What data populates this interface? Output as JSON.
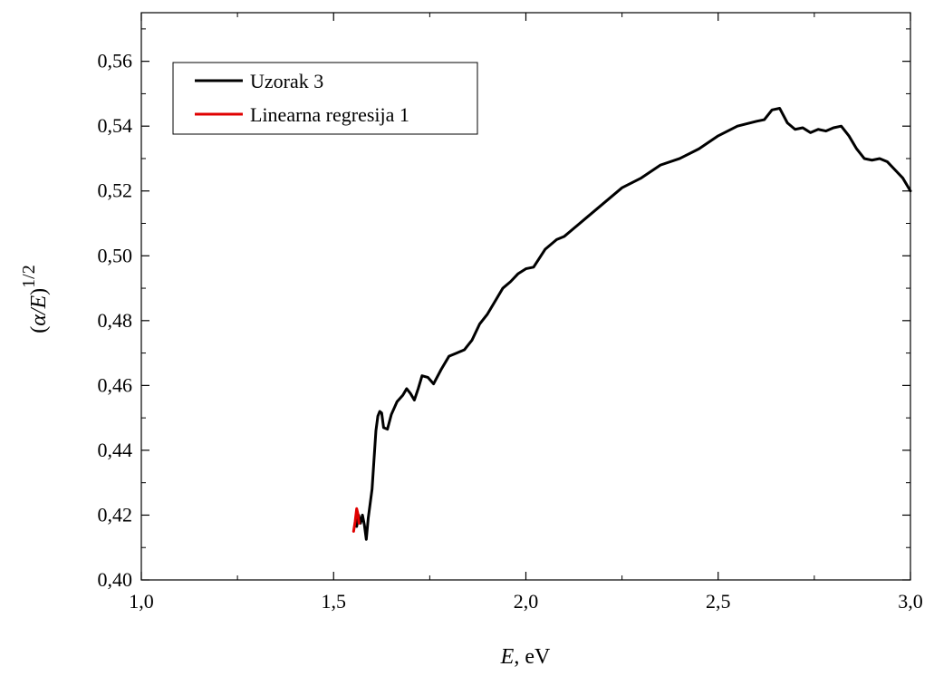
{
  "chart_data": {
    "type": "line",
    "title": "",
    "xlabel": {
      "italic": "E",
      "rest": ", eV"
    },
    "ylabel": {
      "open": "(",
      "italic": "α/E",
      "close": ")",
      "sup": "1/2"
    },
    "xlim": [
      1.0,
      3.0
    ],
    "ylim": [
      0.4,
      0.575
    ],
    "xticks": [
      1.0,
      1.5,
      2.0,
      2.5,
      3.0
    ],
    "xtick_labels": [
      "1,0",
      "1,5",
      "2,0",
      "2,5",
      "3,0"
    ],
    "yticks": [
      0.4,
      0.42,
      0.44,
      0.46,
      0.48,
      0.5,
      0.52,
      0.54,
      0.56
    ],
    "ytick_labels": [
      "0,40",
      "0,42",
      "0,44",
      "0,46",
      "0,48",
      "0,50",
      "0,52",
      "0,54",
      "0,56"
    ],
    "grid": false,
    "legend_position": "top-left",
    "series": [
      {
        "name": "Uzorak 3",
        "color": "#000000",
        "points": [
          [
            1.56,
            0.4165
          ],
          [
            1.565,
            0.42
          ],
          [
            1.57,
            0.4175
          ],
          [
            1.575,
            0.42
          ],
          [
            1.58,
            0.417
          ],
          [
            1.585,
            0.4125
          ],
          [
            1.59,
            0.419
          ],
          [
            1.6,
            0.428
          ],
          [
            1.605,
            0.437
          ],
          [
            1.61,
            0.446
          ],
          [
            1.615,
            0.4505
          ],
          [
            1.62,
            0.452
          ],
          [
            1.625,
            0.4515
          ],
          [
            1.63,
            0.447
          ],
          [
            1.64,
            0.4465
          ],
          [
            1.65,
            0.451
          ],
          [
            1.665,
            0.455
          ],
          [
            1.68,
            0.457
          ],
          [
            1.69,
            0.459
          ],
          [
            1.7,
            0.4575
          ],
          [
            1.71,
            0.4555
          ],
          [
            1.72,
            0.459
          ],
          [
            1.73,
            0.463
          ],
          [
            1.745,
            0.4625
          ],
          [
            1.76,
            0.4605
          ],
          [
            1.78,
            0.465
          ],
          [
            1.8,
            0.469
          ],
          [
            1.82,
            0.47
          ],
          [
            1.84,
            0.471
          ],
          [
            1.86,
            0.474
          ],
          [
            1.88,
            0.479
          ],
          [
            1.9,
            0.482
          ],
          [
            1.92,
            0.486
          ],
          [
            1.94,
            0.49
          ],
          [
            1.96,
            0.492
          ],
          [
            1.98,
            0.4945
          ],
          [
            2.0,
            0.496
          ],
          [
            2.02,
            0.4965
          ],
          [
            2.05,
            0.502
          ],
          [
            2.08,
            0.505
          ],
          [
            2.1,
            0.506
          ],
          [
            2.15,
            0.511
          ],
          [
            2.2,
            0.516
          ],
          [
            2.25,
            0.521
          ],
          [
            2.3,
            0.524
          ],
          [
            2.35,
            0.528
          ],
          [
            2.4,
            0.53
          ],
          [
            2.45,
            0.533
          ],
          [
            2.5,
            0.537
          ],
          [
            2.55,
            0.54
          ],
          [
            2.6,
            0.5415
          ],
          [
            2.62,
            0.542
          ],
          [
            2.64,
            0.545
          ],
          [
            2.66,
            0.5455
          ],
          [
            2.68,
            0.541
          ],
          [
            2.7,
            0.539
          ],
          [
            2.72,
            0.5395
          ],
          [
            2.74,
            0.538
          ],
          [
            2.76,
            0.539
          ],
          [
            2.78,
            0.5385
          ],
          [
            2.8,
            0.5395
          ],
          [
            2.82,
            0.54
          ],
          [
            2.84,
            0.537
          ],
          [
            2.86,
            0.533
          ],
          [
            2.88,
            0.53
          ],
          [
            2.9,
            0.5295
          ],
          [
            2.92,
            0.53
          ],
          [
            2.94,
            0.529
          ],
          [
            2.96,
            0.5265
          ],
          [
            2.98,
            0.524
          ],
          [
            3.0,
            0.52
          ]
        ]
      },
      {
        "name": "Linearna regresija 1",
        "color": "#e00000",
        "points": [
          [
            1.552,
            0.415
          ],
          [
            1.556,
            0.418
          ],
          [
            1.56,
            0.422
          ],
          [
            1.563,
            0.4205
          ],
          [
            1.566,
            0.4175
          ]
        ]
      }
    ]
  }
}
